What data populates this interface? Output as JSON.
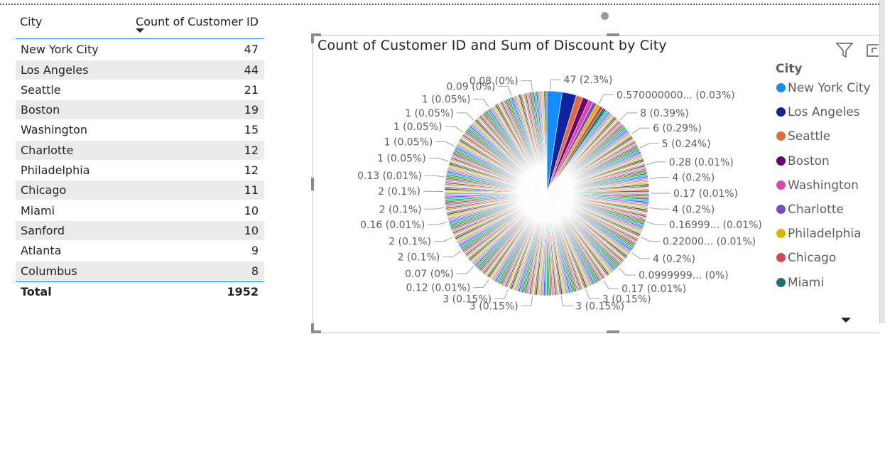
{
  "table": {
    "headers": [
      "City",
      "Count of Customer ID"
    ],
    "rows": [
      {
        "city": "New York City",
        "count": "47"
      },
      {
        "city": "Los Angeles",
        "count": "44"
      },
      {
        "city": "Seattle",
        "count": "21"
      },
      {
        "city": "Boston",
        "count": "19"
      },
      {
        "city": "Washington",
        "count": "15"
      },
      {
        "city": "Charlotte",
        "count": "12"
      },
      {
        "city": "Philadelphia",
        "count": "12"
      },
      {
        "city": "Chicago",
        "count": "11"
      },
      {
        "city": "Miami",
        "count": "10"
      },
      {
        "city": "Sanford",
        "count": "10"
      },
      {
        "city": "Atlanta",
        "count": "9"
      },
      {
        "city": "Columbus",
        "count": "8"
      }
    ],
    "total_label": "Total",
    "total_value": "1952"
  },
  "chart": {
    "title": "Count of Customer ID and Sum of Discount by City",
    "legend_title": "City",
    "legend": [
      {
        "name": "New York City",
        "color": "#118dff"
      },
      {
        "name": "Los Angeles",
        "color": "#12239e"
      },
      {
        "name": "Seattle",
        "color": "#e66c37"
      },
      {
        "name": "Boston",
        "color": "#6b007b"
      },
      {
        "name": "Washington",
        "color": "#e044a7"
      },
      {
        "name": "Charlotte",
        "color": "#744ec2"
      },
      {
        "name": "Philadelphia",
        "color": "#d9b300"
      },
      {
        "name": "Chicago",
        "color": "#d64550"
      },
      {
        "name": "Miami",
        "color": "#197278"
      }
    ],
    "icons": [
      "filter-icon",
      "focus-mode-icon",
      "scroll-down-icon"
    ]
  },
  "chart_data": {
    "type": "pie",
    "title": "Count of Customer ID and Sum of Discount by City",
    "legend_position": "right",
    "total": 1952,
    "major_slices": [
      {
        "city": "New York City",
        "value": 47,
        "color": "#118dff"
      },
      {
        "city": "Los Angeles",
        "value": 44,
        "color": "#12239e"
      },
      {
        "city": "Seattle",
        "value": 21,
        "color": "#e66c37"
      },
      {
        "city": "Boston",
        "value": 19,
        "color": "#6b007b"
      },
      {
        "city": "Washington",
        "value": 15,
        "color": "#e044a7"
      },
      {
        "city": "Charlotte",
        "value": 12,
        "color": "#744ec2"
      },
      {
        "city": "Philadelphia",
        "value": 12,
        "color": "#d9b300"
      },
      {
        "city": "Chicago",
        "value": 11,
        "color": "#d64550"
      },
      {
        "city": "Miami",
        "value": 10,
        "color": "#197278"
      }
    ],
    "minor_palette": [
      "#1aab40",
      "#15c6f4",
      "#4766ff",
      "#ff6ac1",
      "#94a3b8",
      "#a1d99b",
      "#f2c811",
      "#4f4f4f",
      "#8c6bb1",
      "#c7e9c0",
      "#fd8d3c",
      "#636363",
      "#ef9b9b",
      "#41b6c4",
      "#e7298a",
      "#66a61e"
    ],
    "data_labels": [
      {
        "text": "47 (2.3%)",
        "angle": 2
      },
      {
        "text": "0.570000000... (0.03%)",
        "angle": 30
      },
      {
        "text": "8 (0.39%)",
        "angle": 45
      },
      {
        "text": "6 (0.29%)",
        "angle": 55
      },
      {
        "text": "5 (0.24%)",
        "angle": 64
      },
      {
        "text": "0.28 (0.01%)",
        "angle": 74
      },
      {
        "text": "4 (0.2%)",
        "angle": 82
      },
      {
        "text": "0.17 (0.01%)",
        "angle": 90
      },
      {
        "text": "4 (0.2%)",
        "angle": 98
      },
      {
        "text": "0.16999... (0.01%)",
        "angle": 106
      },
      {
        "text": "0.22000... (0.01%)",
        "angle": 115
      },
      {
        "text": "4 (0.2%)",
        "angle": 125
      },
      {
        "text": "0.0999999... (0%)",
        "angle": 136
      },
      {
        "text": "0.17 (0.01%)",
        "angle": 147
      },
      {
        "text": "3 (0.15%)",
        "angle": 158
      },
      {
        "text": "3 (0.15%)",
        "angle": 172
      },
      {
        "text": "3 (0.15%)",
        "angle": 188
      },
      {
        "text": "3 (0.15%)",
        "angle": 202
      },
      {
        "text": "0.12 (0.01%)",
        "angle": 214
      },
      {
        "text": "0.07 (0%)",
        "angle": 225
      },
      {
        "text": "2 (0.1%)",
        "angle": 236
      },
      {
        "text": "2 (0.1%)",
        "angle": 245
      },
      {
        "text": "0.16 (0.01%)",
        "angle": 254
      },
      {
        "text": "2 (0.1%)",
        "angle": 262
      },
      {
        "text": "2 (0.1%)",
        "angle": 271
      },
      {
        "text": "0.13 (0.01%)",
        "angle": 279
      },
      {
        "text": "1 (0.05%)",
        "angle": 288
      },
      {
        "text": "1 (0.05%)",
        "angle": 297
      },
      {
        "text": "1 (0.05%)",
        "angle": 306
      },
      {
        "text": "1 (0.05%)",
        "angle": 315
      },
      {
        "text": "1 (0.05%)",
        "angle": 326
      },
      {
        "text": "0.09 (0%)",
        "angle": 340
      },
      {
        "text": "0.08 (0%)",
        "angle": 352
      }
    ]
  }
}
